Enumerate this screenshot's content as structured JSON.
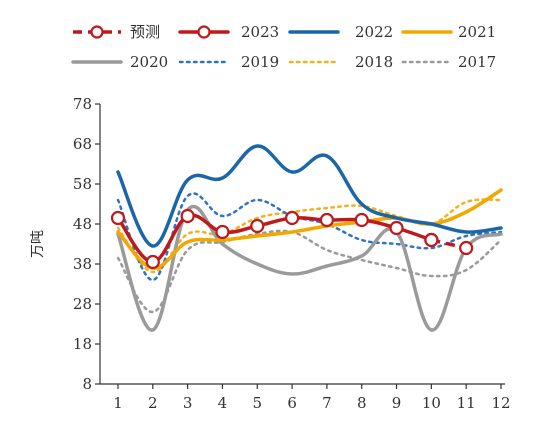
{
  "chart_data": {
    "type": "line",
    "title": "",
    "xlabel": "",
    "ylabel": "万吨",
    "categories": [
      "1",
      "2",
      "3",
      "4",
      "5",
      "6",
      "7",
      "8",
      "9",
      "10",
      "11",
      "12"
    ],
    "yticks": [
      8,
      18,
      28,
      38,
      48,
      58,
      68,
      78
    ],
    "ylim": [
      8,
      78
    ],
    "grid": false,
    "legend": "top",
    "series": [
      {
        "name": "预测",
        "color": "#c0191c",
        "style": "dashed-marker",
        "x": [
          10,
          11
        ],
        "values": [
          44,
          42
        ]
      },
      {
        "name": "2023",
        "color": "#c0191c",
        "style": "solid-marker",
        "x": [
          1,
          2,
          3,
          4,
          5,
          6,
          7,
          8,
          9,
          10
        ],
        "values": [
          49.5,
          38.5,
          50,
          46,
          47.5,
          49.5,
          49,
          49,
          47,
          44
        ]
      },
      {
        "name": "2022",
        "color": "#1a66a8",
        "style": "solid",
        "x": [
          1,
          2,
          3,
          4,
          5,
          6,
          7,
          8,
          9,
          10,
          11,
          12
        ],
        "values": [
          61,
          42.5,
          59,
          59.5,
          67.5,
          61,
          65,
          53,
          49.5,
          48,
          46,
          47
        ]
      },
      {
        "name": "2021",
        "color": "#f2a800",
        "style": "solid",
        "x": [
          1,
          2,
          3,
          4,
          5,
          6,
          7,
          8,
          9,
          10,
          11,
          12
        ],
        "values": [
          46,
          37,
          43.5,
          44,
          45,
          46,
          47.5,
          48.5,
          49.5,
          48,
          51,
          56.5
        ]
      },
      {
        "name": "2020",
        "color": "#9a9a9a",
        "style": "solid",
        "x": [
          1,
          2,
          3,
          4,
          5,
          6,
          7,
          8,
          9,
          10,
          11,
          12
        ],
        "values": [
          45.5,
          21.5,
          51.5,
          43,
          38,
          35.5,
          37.5,
          40,
          46,
          21.5,
          42,
          45.5
        ]
      },
      {
        "name": "2019",
        "color": "#2f73c4",
        "style": "dotted",
        "x": [
          1,
          2,
          3,
          4,
          5,
          6,
          7,
          8,
          9,
          10,
          11,
          12
        ],
        "values": [
          54,
          34,
          55,
          50,
          54,
          50,
          48,
          44,
          43,
          42,
          45,
          46
        ]
      },
      {
        "name": "2018",
        "color": "#f2b21f",
        "style": "dotted",
        "x": [
          1,
          2,
          3,
          4,
          5,
          6,
          7,
          8,
          9,
          10,
          11,
          12
        ],
        "values": [
          47,
          36,
          45.5,
          45.5,
          49.5,
          51,
          52,
          52.5,
          50,
          48,
          53.5,
          54
        ]
      },
      {
        "name": "2017",
        "color": "#9a9a9a",
        "style": "dotted",
        "x": [
          1,
          2,
          3,
          4,
          5,
          6,
          7,
          8,
          9,
          10,
          11,
          12
        ],
        "values": [
          39.5,
          26,
          41.5,
          43.5,
          45.5,
          46,
          41.5,
          39,
          37,
          35,
          36.5,
          44
        ]
      }
    ]
  }
}
